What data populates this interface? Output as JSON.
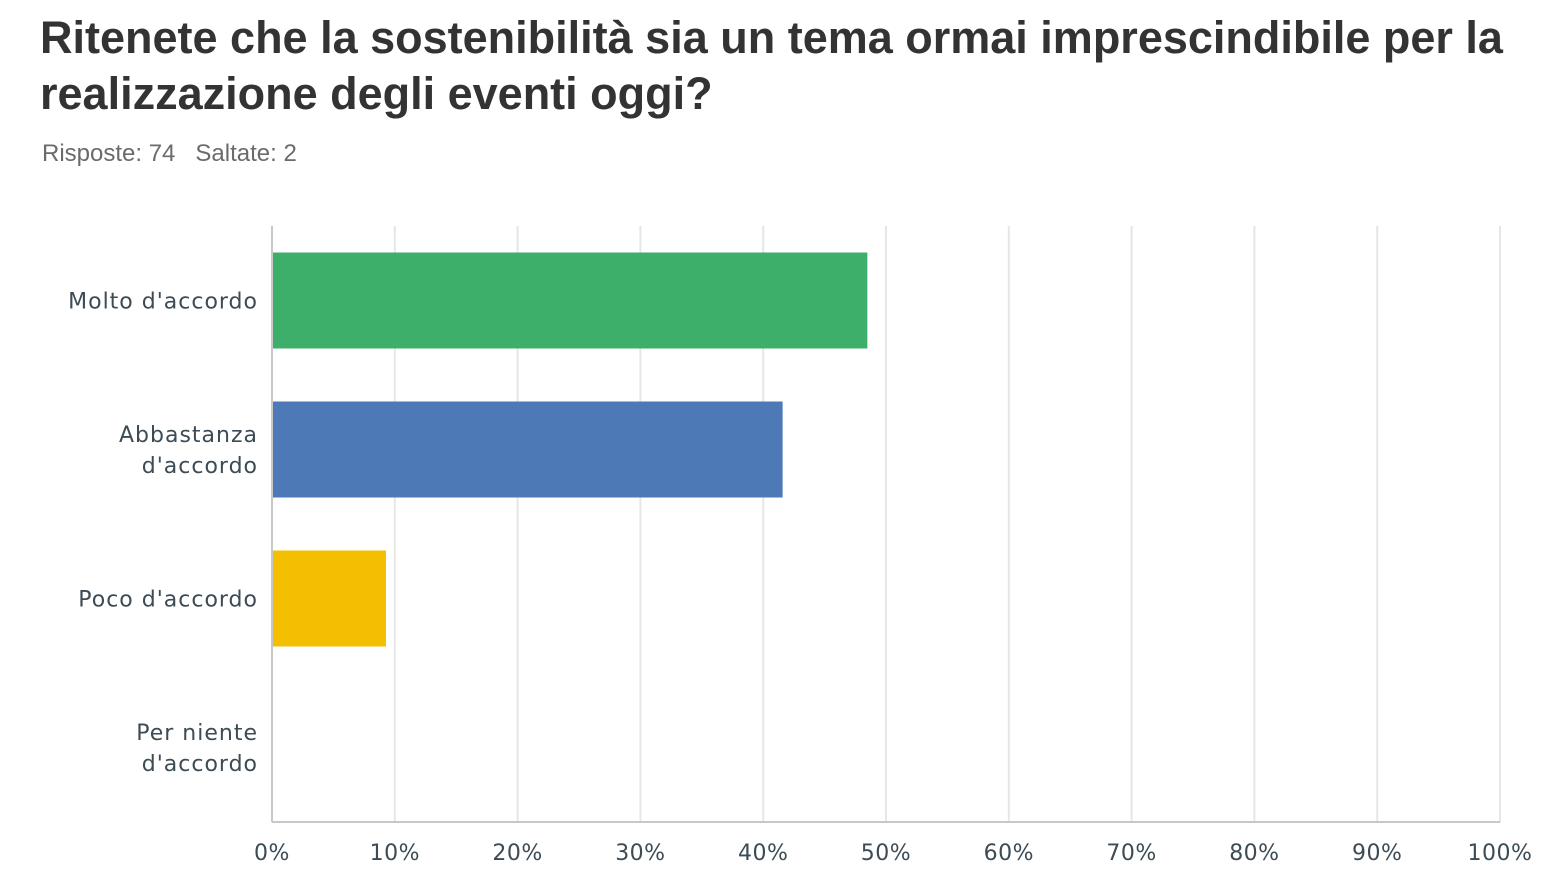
{
  "header": {
    "question": "Ritenete che la sostenibilità sia un tema ormai imprescindibile per la realizzazione degli eventi oggi?",
    "responses_label": "Risposte: 74",
    "skipped_label": "Saltate: 2"
  },
  "chart_data": {
    "type": "bar",
    "orientation": "horizontal",
    "title": "Ritenete che la sostenibilità sia un tema ormai imprescindibile per la realizzazione degli eventi oggi?",
    "xlabel": "",
    "ylabel": "",
    "xlim": [
      0,
      100
    ],
    "grid": true,
    "categories": [
      [
        "Molto d'accordo"
      ],
      [
        "Abbastanza",
        "d'accordo"
      ],
      [
        "Poco d'accordo"
      ],
      [
        "Per niente",
        "d'accordo"
      ]
    ],
    "values": [
      48.4,
      41.5,
      9.2,
      0
    ],
    "colors": [
      "#3eaf6b",
      "#4d7ab6",
      "#f4bf00",
      "#e2e2e2"
    ],
    "tick_values": [
      0,
      10,
      20,
      30,
      40,
      50,
      60,
      70,
      80,
      90,
      100
    ],
    "tick_labels": [
      "0%",
      "10%",
      "20%",
      "30%",
      "40%",
      "50%",
      "60%",
      "70%",
      "80%",
      "90%",
      "100%"
    ]
  }
}
